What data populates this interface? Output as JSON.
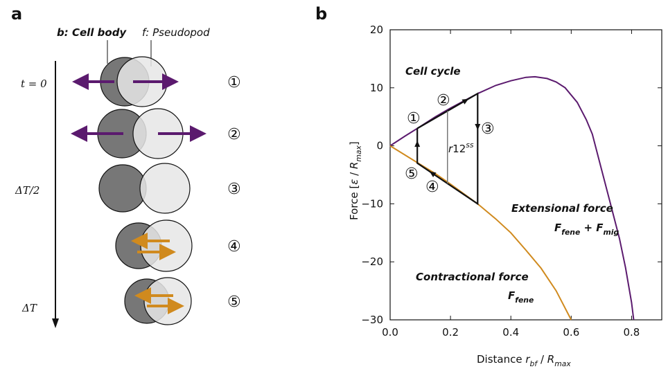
{
  "panel_a": {
    "label": "a",
    "body_label": "b: Cell body",
    "pseudo_label": "f: Pseudopod",
    "time_labels": [
      "t = 0",
      "ΔT/2",
      "ΔT"
    ],
    "steps": [
      "①",
      "②",
      "③",
      "④",
      "⑤"
    ]
  },
  "chart_data": {
    "type": "line",
    "panel_label": "b",
    "x_label": [
      "Distance ",
      "r",
      "bf",
      " / ",
      "R",
      "max"
    ],
    "y_label": [
      "Force [",
      "ε",
      " / ",
      "R",
      "max",
      "]"
    ],
    "xlim": [
      0,
      0.9
    ],
    "ylim": [
      -30,
      20
    ],
    "xticks": [
      {
        "value": 0,
        "label": "0.0"
      },
      {
        "value": 0.2,
        "label": "0.2"
      },
      {
        "value": 0.4,
        "label": "0.4"
      },
      {
        "value": 0.6,
        "label": "0.6"
      },
      {
        "value": 0.8,
        "label": "0.8"
      }
    ],
    "yticks": [
      20,
      10,
      {
        "value": 0,
        "label": "0"
      },
      {
        "value": -10,
        "label": "−10"
      },
      {
        "value": -20,
        "label": "−20"
      },
      {
        "value": -30,
        "label": "−30"
      }
    ],
    "series": [
      {
        "name": "Extensional force",
        "formula": [
          "F",
          "fene",
          " + F",
          "mig"
        ],
        "color": "#5b1a6e",
        "x": [
          0,
          0.05,
          0.09,
          0.15,
          0.2,
          0.29,
          0.35,
          0.4,
          0.45,
          0.48,
          0.52,
          0.55,
          0.58,
          0.62,
          0.65,
          0.67,
          0.7,
          0.73,
          0.76,
          0.78,
          0.8,
          0.807
        ],
        "values": [
          0,
          1.7,
          3,
          5,
          6.5,
          9,
          10.4,
          11.2,
          11.8,
          11.9,
          11.6,
          11,
          10,
          7.5,
          4.5,
          2,
          -4,
          -10,
          -16,
          -21,
          -27,
          -30
        ]
      },
      {
        "name": "Contractional force",
        "formula": [
          "F",
          "fene"
        ],
        "color": "#d08a1e",
        "x": [
          0,
          0.09,
          0.15,
          0.2,
          0.29,
          0.35,
          0.4,
          0.45,
          0.5,
          0.55,
          0.6
        ],
        "values": [
          0,
          -2.9,
          -4.8,
          -6.6,
          -10,
          -12.6,
          -15,
          -18,
          -21.1,
          -25,
          -30
        ]
      }
    ],
    "cycle": {
      "label": "Cell cycle",
      "steps": [
        "①",
        "②",
        "③",
        "④",
        "⑤"
      ],
      "x": [
        0.09,
        0.29,
        0.29,
        0.09,
        0.09
      ],
      "values": [
        3,
        9,
        -10,
        -3,
        3
      ]
    },
    "r12": {
      "label": [
        "r",
        "12",
        "ss"
      ],
      "x": 0.19,
      "values": [
        6,
        -6.5
      ]
    }
  }
}
